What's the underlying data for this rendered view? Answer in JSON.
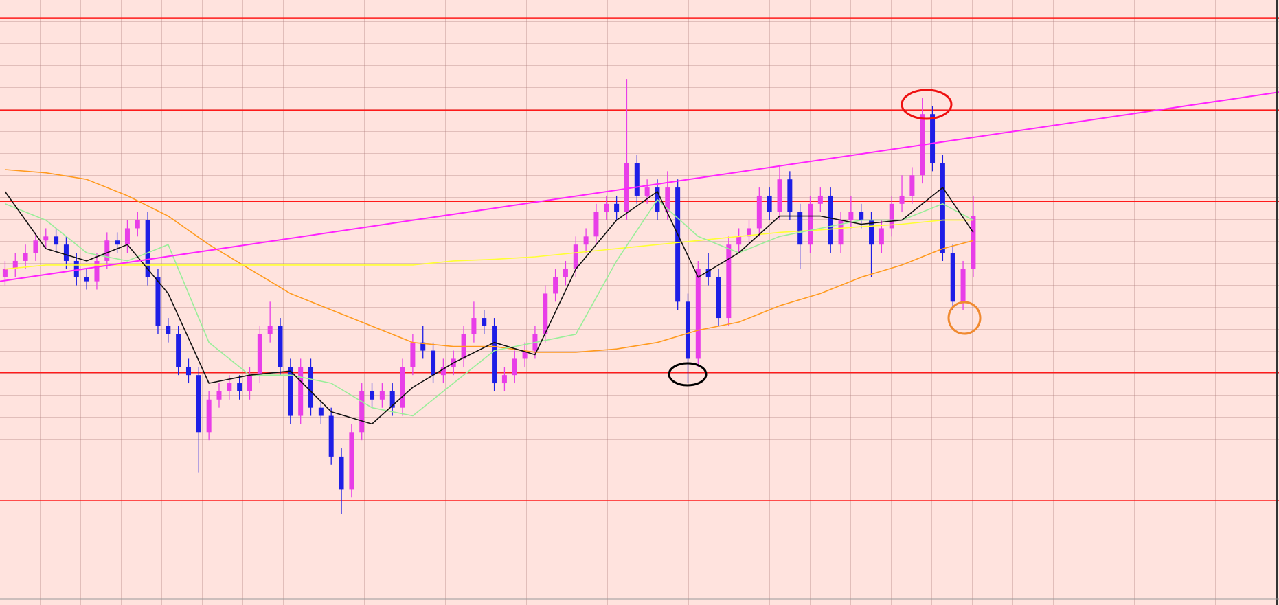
{
  "chart_data": {
    "type": "candlestick",
    "xlim": [
      -0.5,
      125
    ],
    "ylim": [
      0,
      742
    ],
    "up_color": "#e83ee8",
    "down_color": "#1e1ee6",
    "open": [
      402,
      412,
      422,
      432,
      447,
      452,
      442,
      422,
      402,
      397,
      422,
      447,
      442,
      462,
      472,
      402,
      342,
      332,
      292,
      282,
      212,
      252,
      262,
      272,
      262,
      282,
      332,
      342,
      292,
      232,
      292,
      242,
      232,
      182,
      142,
      212,
      262,
      252,
      262,
      242,
      292,
      322,
      312,
      282,
      292,
      302,
      332,
      352,
      342,
      272,
      282,
      302,
      312,
      332,
      382,
      402,
      412,
      442,
      452,
      482,
      492,
      482,
      542,
      502,
      512,
      482,
      512,
      372,
      302,
      412,
      402,
      352,
      442,
      452,
      462,
      502,
      482,
      522,
      482,
      442,
      492,
      502,
      442,
      472,
      482,
      472,
      442,
      462,
      492,
      502,
      527,
      602,
      542,
      432,
      372,
      412
    ],
    "high": [
      422,
      432,
      442,
      457,
      462,
      462,
      452,
      432,
      412,
      432,
      457,
      457,
      472,
      482,
      482,
      412,
      352,
      342,
      302,
      292,
      262,
      272,
      282,
      282,
      292,
      342,
      372,
      352,
      302,
      302,
      302,
      252,
      242,
      192,
      222,
      272,
      272,
      272,
      272,
      302,
      332,
      342,
      322,
      302,
      312,
      342,
      372,
      362,
      352,
      292,
      312,
      322,
      342,
      392,
      412,
      422,
      452,
      462,
      492,
      502,
      502,
      645,
      552,
      522,
      522,
      532,
      522,
      382,
      422,
      432,
      412,
      452,
      462,
      472,
      512,
      512,
      540,
      532,
      492,
      502,
      512,
      512,
      482,
      502,
      492,
      482,
      472,
      502,
      527,
      537,
      622,
      612,
      552,
      442,
      422,
      502
    ],
    "low": [
      392,
      402,
      412,
      422,
      437,
      432,
      412,
      392,
      387,
      387,
      412,
      432,
      432,
      452,
      392,
      332,
      322,
      282,
      272,
      162,
      202,
      242,
      252,
      252,
      252,
      272,
      322,
      282,
      222,
      222,
      232,
      222,
      172,
      112,
      132,
      202,
      242,
      242,
      232,
      232,
      282,
      302,
      272,
      272,
      282,
      292,
      322,
      332,
      262,
      262,
      272,
      292,
      302,
      322,
      372,
      392,
      402,
      432,
      442,
      472,
      472,
      472,
      492,
      492,
      472,
      472,
      362,
      272,
      292,
      392,
      342,
      342,
      432,
      442,
      452,
      472,
      472,
      472,
      412,
      432,
      482,
      432,
      432,
      462,
      462,
      402,
      432,
      452,
      482,
      492,
      517,
      532,
      422,
      362,
      362,
      402
    ],
    "close": [
      412,
      422,
      432,
      447,
      452,
      442,
      422,
      402,
      397,
      422,
      447,
      442,
      462,
      472,
      402,
      342,
      332,
      292,
      282,
      212,
      252,
      262,
      272,
      262,
      282,
      332,
      342,
      292,
      232,
      292,
      242,
      232,
      182,
      142,
      212,
      262,
      252,
      262,
      242,
      292,
      322,
      312,
      282,
      292,
      302,
      332,
      352,
      342,
      272,
      282,
      302,
      312,
      332,
      382,
      402,
      412,
      442,
      452,
      482,
      492,
      482,
      542,
      502,
      512,
      482,
      512,
      372,
      302,
      412,
      402,
      352,
      442,
      452,
      462,
      502,
      482,
      522,
      482,
      442,
      492,
      502,
      442,
      472,
      482,
      472,
      442,
      462,
      492,
      502,
      527,
      602,
      542,
      432,
      372,
      412,
      477
    ],
    "ma_x": [
      0,
      4,
      8,
      12,
      16,
      20,
      24,
      28,
      32,
      36,
      40,
      44,
      48,
      52,
      56,
      60,
      64,
      68,
      72,
      76,
      80,
      84,
      88,
      92,
      95
    ],
    "lines": [
      {
        "color": "#ff9a1e",
        "values": [
          534,
          530,
          522,
          502,
          477,
          442,
          412,
          382,
          362,
          342,
          322,
          317,
          317,
          310,
          310,
          314,
          322,
          337,
          347,
          367,
          382,
          402,
          417,
          437,
          447
        ]
      },
      {
        "color": "#ffff33",
        "values": [
          412,
          417,
          417,
          417,
          417,
          417,
          417,
          417,
          417,
          417,
          417,
          422,
          424,
          427,
          432,
          437,
          442,
          447,
          452,
          457,
          460,
          464,
          467,
          472,
          472
        ]
      },
      {
        "color": "#99ee99",
        "values": [
          492,
          472,
          432,
          422,
          442,
          322,
          282,
          282,
          272,
          242,
          232,
          272,
          312,
          322,
          332,
          422,
          497,
          452,
          432,
          452,
          462,
          472,
          472,
          492,
          472
        ]
      },
      {
        "color": "#111111",
        "values": [
          507,
          437,
          422,
          442,
          382,
          272,
          282,
          287,
          237,
          222,
          267,
          297,
          322,
          307,
          412,
          472,
          507,
          402,
          432,
          477,
          477,
          467,
          472,
          512,
          457
        ]
      }
    ],
    "trendline": {
      "color": "#ff22ff",
      "x": [
        -0.5,
        125
      ],
      "values": [
        397,
        629
      ]
    },
    "levels": {
      "color": "#ff1a1a",
      "values": [
        720,
        607,
        495,
        285,
        128
      ]
    }
  }
}
